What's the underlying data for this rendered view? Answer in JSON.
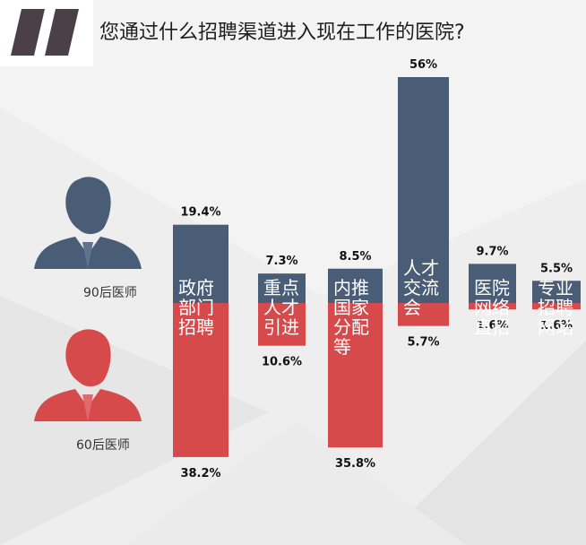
{
  "title": "您通过什么招聘渠道进入现在工作的医院?",
  "legend": {
    "series_90": "90后医师",
    "series_60": "60后医师"
  },
  "colors": {
    "series_90": "#4a5d77",
    "series_60": "#d64a4c",
    "logo": "#4b4048"
  },
  "icons": {
    "logo": "double-slash-logo-icon",
    "series_90": "male-silhouette-icon",
    "series_60": "male-silhouette-icon"
  },
  "chart_data": {
    "type": "bar",
    "layout": "diverging",
    "categories": [
      "政府部门招聘",
      "重点人才引进",
      "内推国家分配等",
      "人才交流会",
      "医院网络直招",
      "专业招聘网站"
    ],
    "category_display": [
      "政府\n部门\n招聘",
      "重点\n人才\n引进",
      "内推\n国家\n分配\n等",
      "人才\n交流\n会",
      "医院\n网络\n直招",
      "专业\n招聘\n网站"
    ],
    "series": [
      {
        "name": "90后医师",
        "values": [
          19.4,
          7.3,
          8.5,
          56,
          9.7,
          5.5
        ],
        "labels": [
          "19.4%",
          "7.3%",
          "8.5%",
          "56%",
          "9.7%",
          "5.5%"
        ]
      },
      {
        "name": "60后医师",
        "values": [
          38.2,
          10.6,
          35.8,
          5.7,
          1.6,
          1.6
        ],
        "labels": [
          "38.2%",
          "10.6%",
          "35.8%",
          "5.7%",
          "1.6%",
          "1.6%"
        ]
      }
    ],
    "unit": "%"
  }
}
